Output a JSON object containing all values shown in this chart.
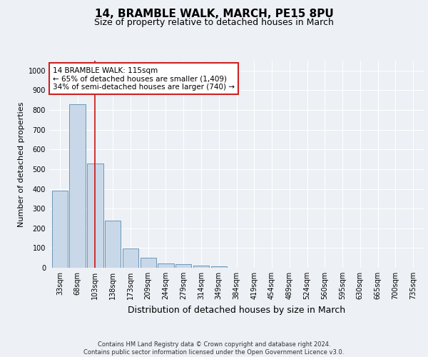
{
  "title1": "14, BRAMBLE WALK, MARCH, PE15 8PU",
  "title2": "Size of property relative to detached houses in March",
  "xlabel": "Distribution of detached houses by size in March",
  "ylabel": "Number of detached properties",
  "bar_labels": [
    "33sqm",
    "68sqm",
    "103sqm",
    "138sqm",
    "173sqm",
    "209sqm",
    "244sqm",
    "279sqm",
    "314sqm",
    "349sqm",
    "384sqm",
    "419sqm",
    "454sqm",
    "489sqm",
    "524sqm",
    "560sqm",
    "595sqm",
    "630sqm",
    "665sqm",
    "700sqm",
    "735sqm"
  ],
  "bar_values": [
    390,
    828,
    530,
    240,
    96,
    50,
    20,
    18,
    12,
    8,
    0,
    0,
    0,
    0,
    0,
    0,
    0,
    0,
    0,
    0,
    0
  ],
  "bar_color": "#c8d8e8",
  "bar_edge_color": "#5a8ab0",
  "vline_index": 2,
  "vline_color": "#cc2222",
  "annotation_text": "14 BRAMBLE WALK: 115sqm\n← 65% of detached houses are smaller (1,409)\n34% of semi-detached houses are larger (740) →",
  "annotation_box_color": "#ffffff",
  "annotation_box_edge_color": "#cc2222",
  "ylim": [
    0,
    1050
  ],
  "yticks": [
    0,
    100,
    200,
    300,
    400,
    500,
    600,
    700,
    800,
    900,
    1000
  ],
  "bg_color": "#edf0f5",
  "plot_bg_color": "#edf0f5",
  "footer_text": "Contains HM Land Registry data © Crown copyright and database right 2024.\nContains public sector information licensed under the Open Government Licence v3.0.",
  "grid_color": "#ffffff",
  "title1_fontsize": 11,
  "title2_fontsize": 9,
  "ylabel_fontsize": 8,
  "xlabel_fontsize": 9,
  "tick_fontsize": 7,
  "annot_fontsize": 7.5,
  "footer_fontsize": 6
}
